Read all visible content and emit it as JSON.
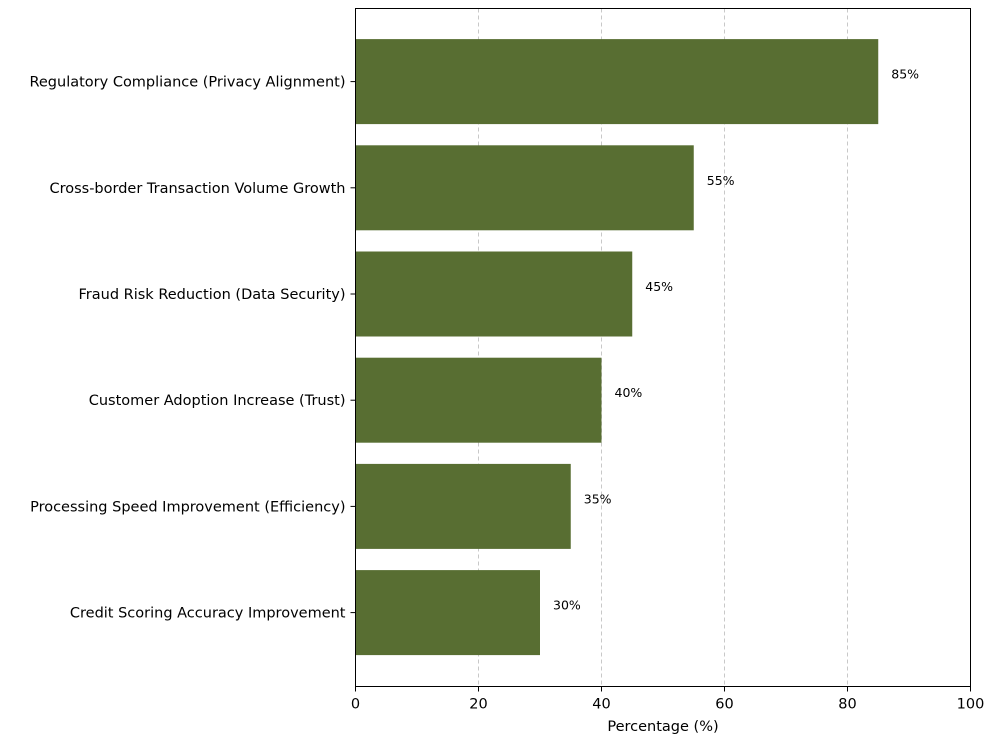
{
  "chart_data": {
    "type": "bar",
    "orientation": "horizontal",
    "categories": [
      "Regulatory Compliance (Privacy Alignment)",
      "Cross-border Transaction Volume Growth",
      "Fraud Risk Reduction (Data Security)",
      "Customer Adoption Increase (Trust)",
      "Processing Speed Improvement (Efficiency)",
      "Credit Scoring Accuracy Improvement"
    ],
    "values": [
      85,
      55,
      45,
      40,
      35,
      30
    ],
    "data_labels": [
      "85%",
      "55%",
      "45%",
      "40%",
      "35%",
      "30%"
    ],
    "title": "",
    "xlabel": "Percentage (%)",
    "ylabel": "",
    "xlim": [
      0,
      100
    ],
    "xticks": [
      0,
      20,
      40,
      60,
      80,
      100
    ],
    "xtick_labels": [
      "0",
      "20",
      "40",
      "60",
      "80",
      "100"
    ],
    "grid": "x-dashed",
    "bar_color": "#586e32",
    "grid_color": "#c8c8c8"
  }
}
